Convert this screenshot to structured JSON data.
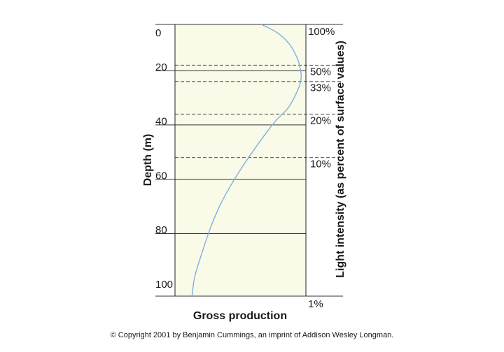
{
  "chart_data": {
    "type": "line",
    "xlabel": "Gross production",
    "ylabel": "Depth (m)",
    "ylabel_right": "Light intensity (as percent of surface values)",
    "ylim": [
      0,
      100
    ],
    "y_reversed": true,
    "y_ticks": [
      "0",
      "20",
      "40",
      "60",
      "80",
      "100"
    ],
    "gridlines_depth": [
      17,
      37,
      57,
      77
    ],
    "light_levels": [
      {
        "label": "100%",
        "depth": 0,
        "dashed": false
      },
      {
        "label": "50%",
        "depth": 15,
        "dashed": true
      },
      {
        "label": "33%",
        "depth": 21,
        "dashed": true
      },
      {
        "label": "20%",
        "depth": 33,
        "dashed": true
      },
      {
        "label": "10%",
        "depth": 49,
        "dashed": true
      },
      {
        "label": "1%",
        "depth": 100,
        "dashed": false
      }
    ],
    "xlim": [
      0,
      1
    ],
    "series": [
      {
        "color": "#7fb2dc",
        "points": [
          {
            "production": 0.66,
            "depth": 0
          },
          {
            "production": 0.78,
            "depth": 3
          },
          {
            "production": 0.87,
            "depth": 7
          },
          {
            "production": 0.93,
            "depth": 12
          },
          {
            "production": 0.96,
            "depth": 17
          },
          {
            "production": 0.96,
            "depth": 21
          },
          {
            "production": 0.92,
            "depth": 26
          },
          {
            "production": 0.86,
            "depth": 31
          },
          {
            "production": 0.76,
            "depth": 36
          },
          {
            "production": 0.62,
            "depth": 45
          },
          {
            "production": 0.48,
            "depth": 55
          },
          {
            "production": 0.36,
            "depth": 65
          },
          {
            "production": 0.27,
            "depth": 75
          },
          {
            "production": 0.2,
            "depth": 85
          },
          {
            "production": 0.15,
            "depth": 93
          },
          {
            "production": 0.13,
            "depth": 100
          }
        ]
      }
    ],
    "plot_background": "#fafae8"
  },
  "copyright": "© Copyright 2001 by Benjamin Cummings, an imprint of Addison Wesley Longman."
}
